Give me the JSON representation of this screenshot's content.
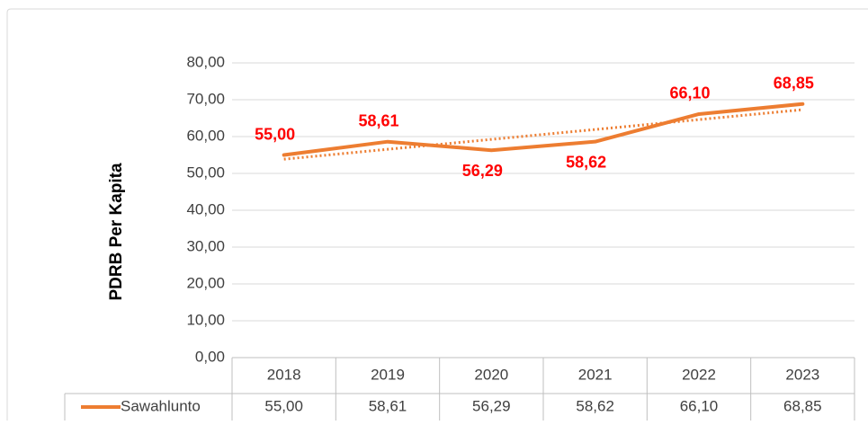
{
  "chart_data": {
    "type": "line",
    "y_label": "PDRB Per Kapita",
    "categories": [
      "2018",
      "2019",
      "2020",
      "2021",
      "2022",
      "2023"
    ],
    "series": [
      {
        "name": "Sawahlunto",
        "color": "#ed7d31",
        "values": [
          55.0,
          58.61,
          56.29,
          58.62,
          66.1,
          68.85
        ],
        "value_labels": [
          "55,00",
          "58,61",
          "56,29",
          "58,62",
          "66,10",
          "68,85"
        ]
      }
    ],
    "trendline": {
      "color": "#ed7d31",
      "style": "dotted",
      "values": [
        53.86,
        56.55,
        59.24,
        61.92,
        64.61,
        67.3
      ]
    },
    "ylim": [
      0,
      80
    ],
    "yticks": [
      {
        "value": 0,
        "label": "0,00"
      },
      {
        "value": 10,
        "label": "10,00"
      },
      {
        "value": 20,
        "label": "20,00"
      },
      {
        "value": 30,
        "label": "30,00"
      },
      {
        "value": 40,
        "label": "40,00"
      },
      {
        "value": 50,
        "label": "50,00"
      },
      {
        "value": 60,
        "label": "60,00"
      },
      {
        "value": 70,
        "label": "70,00"
      },
      {
        "value": 80,
        "label": "80,00"
      }
    ],
    "grid": true,
    "data_table": true
  }
}
